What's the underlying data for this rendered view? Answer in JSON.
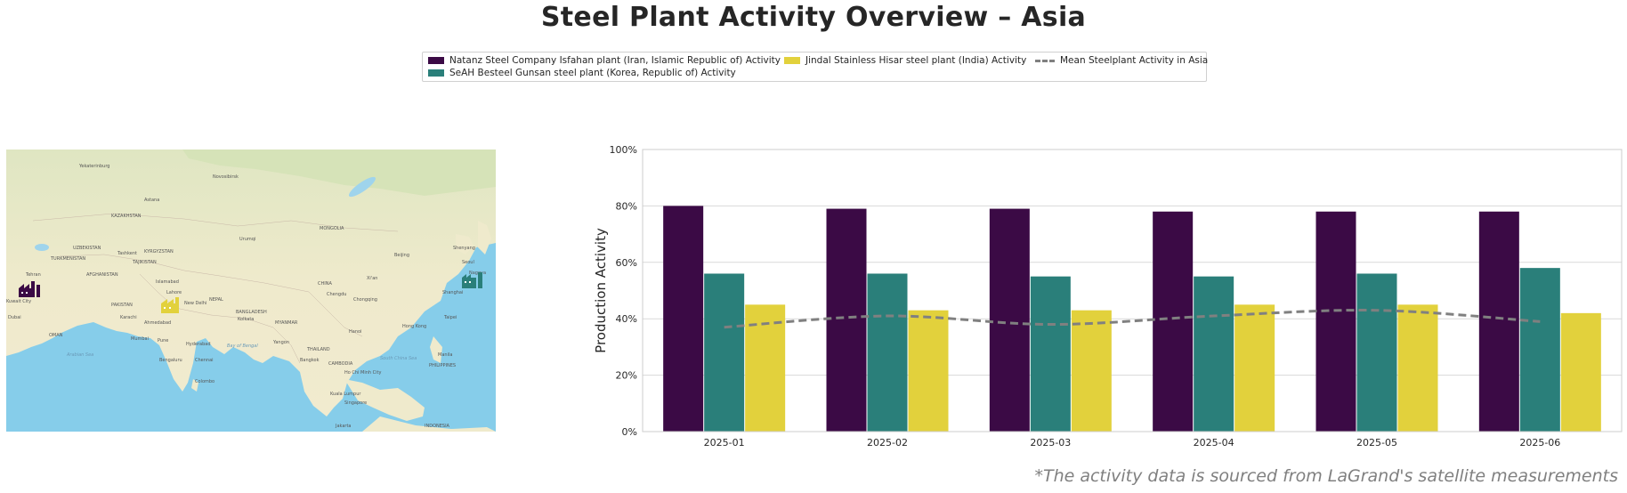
{
  "title": "Steel Plant Activity Overview – Asia",
  "footer": "*The activity data is sourced from LaGrand's satellite measurements",
  "legend": [
    {
      "label": "Natanz Steel Company Isfahan plant (Iran, Islamic Republic of) Activity",
      "color": "#3b0a45"
    },
    {
      "label": "SeAH Besteel Gunsan steel plant (Korea, Republic of) Activity",
      "color": "#2a7f7a"
    },
    {
      "label": "Jindal Stainless Hisar steel plant (India) Activity",
      "color": "#e2d13c"
    },
    {
      "label": "Mean Steelplant Activity in Asia",
      "color": "#808080"
    }
  ],
  "map": {
    "labels": [
      "Yekaterinburg",
      "Novosibirsk",
      "Astana",
      "KAZAKHSTAN",
      "MONGOLIA",
      "Urumqi",
      "Beijing",
      "Shenyang",
      "Seoul",
      "Tashkent",
      "KYRGYZSTAN",
      "UZBEKISTAN",
      "TURKMENISTAN",
      "AFGHANISTAN",
      "TAJIKISTAN",
      "Islamabad",
      "Lahore",
      "New Delhi",
      "PAKISTAN",
      "CHINA",
      "Xi'an",
      "Chongqing",
      "Chengdu",
      "Shanghai",
      "Taipei",
      "Hong Kong",
      "Hanoi",
      "Karachi",
      "Ahmedabad",
      "Mumbai",
      "Pune",
      "Hyderabad",
      "Bengaluru",
      "Chennai",
      "Colombo",
      "Kolkata",
      "MYANMAR",
      "BANGLADESH",
      "Yangon",
      "THAILAND",
      "Bangkok",
      "CAMBODIA",
      "Ho Chi Minh City",
      "Manila",
      "PHILIPPINES",
      "Kuala Lumpur",
      "Singapore",
      "Jakarta",
      "INDONESIA",
      "Arabian Sea",
      "Bay of Bengal",
      "South China Sea",
      "Kuwait City",
      "Tehran",
      "Dubai",
      "OMAN",
      "NEPAL",
      "Nagoya"
    ]
  },
  "chart_data": {
    "type": "bar",
    "categories": [
      "2025-01",
      "2025-02",
      "2025-03",
      "2025-04",
      "2025-05",
      "2025-06"
    ],
    "series": [
      {
        "name": "Natanz Steel Company Isfahan plant (Iran, Islamic Republic of) Activity",
        "color": "#3b0a45",
        "values": [
          80,
          79,
          79,
          78,
          78,
          78
        ]
      },
      {
        "name": "SeAH Besteel Gunsan steel plant (Korea, Republic of) Activity",
        "color": "#2a7f7a",
        "values": [
          56,
          56,
          55,
          55,
          56,
          58
        ]
      },
      {
        "name": "Jindal Stainless Hisar steel plant (India) Activity",
        "color": "#e2d13c",
        "values": [
          45,
          43,
          43,
          45,
          45,
          42
        ]
      }
    ],
    "mean_line": {
      "name": "Mean Steelplant Activity in Asia",
      "color": "#808080",
      "values": [
        37,
        41,
        38,
        41,
        43,
        39
      ]
    },
    "ylabel": "Production Activity",
    "xlabel": "",
    "ylim": [
      0,
      100
    ],
    "yticks": [
      "0%",
      "20%",
      "40%",
      "60%",
      "80%",
      "100%"
    ],
    "grid": true
  }
}
